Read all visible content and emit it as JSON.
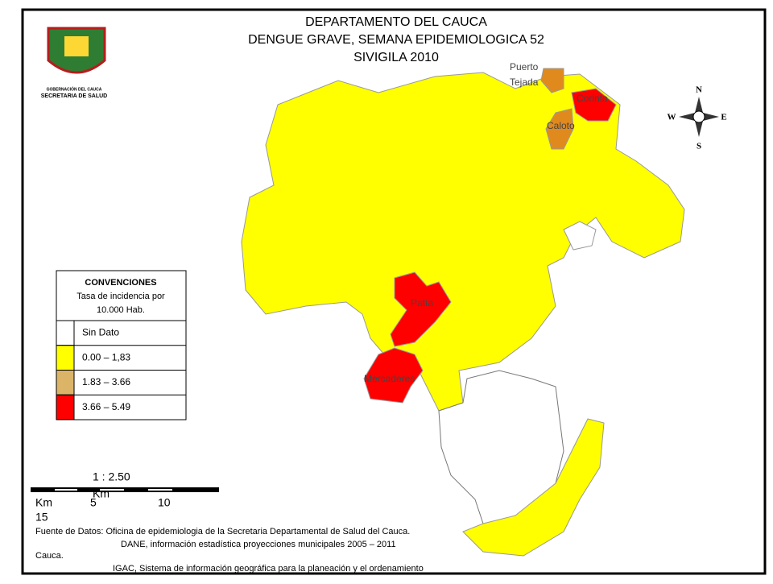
{
  "header": {
    "title_lines": [
      "DEPARTAMENTO DEL CAUCA",
      "DENGUE GRAVE, SEMANA EPIDEMIOLOGICA 52",
      "SIVIGILA 2010"
    ]
  },
  "logo": {
    "line1": "GOBERNACIÓN DEL CAUCA",
    "line2": "SECRETARIA DE SALUD"
  },
  "map_labels": {
    "puerto_tejada": [
      "Puerto",
      "Tejada"
    ],
    "corinto": "Corinto",
    "caloto": "Caloto",
    "patia": "Patía",
    "mercaderes": "Mercaderes"
  },
  "compass": {
    "n": "N",
    "s": "S",
    "e": "E",
    "w": "W"
  },
  "legend": {
    "title": "CONVENCIONES",
    "subtitle": [
      "Tasa de incidencia por",
      "10.000  Hab."
    ],
    "items": [
      {
        "label": "Sin Dato",
        "color": "#ffffff"
      },
      {
        "label": "0.00 – 1,83",
        "color": "#ffff00"
      },
      {
        "label": "1.83 – 3.66",
        "color": "#dcb468"
      },
      {
        "label": "3.66 – 5.49",
        "color": "#ff0000"
      }
    ]
  },
  "scale": {
    "ratio": "1 : 2.50",
    "ratio_unit": "Km",
    "unit": "Km",
    "ticks": [
      "5",
      "10",
      "15"
    ]
  },
  "source": {
    "lines": [
      "Fuente  de Datos: Oficina de epidemiologia de la Secretaria Departamental de Salud del Cauca.",
      "DANE, información estadística proyecciones municipales 2005 – 2011",
      "Cauca.",
      "IGAC, Sistema de información geográfica para la planeación y el ordenamiento"
    ]
  }
}
